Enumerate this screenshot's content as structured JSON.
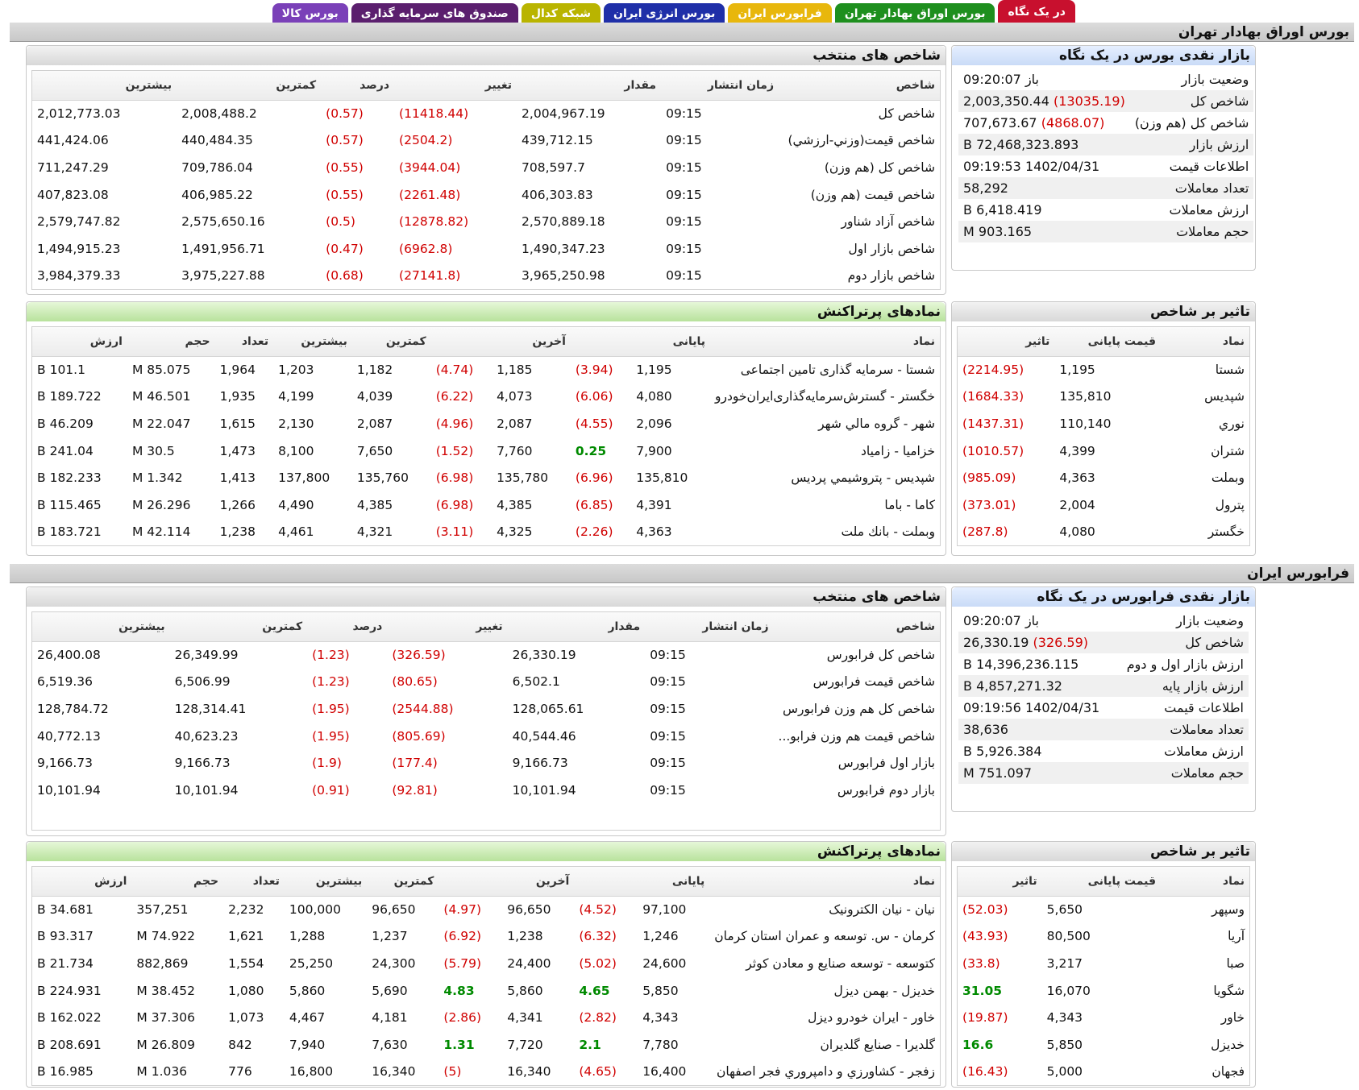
{
  "tabs": [
    {
      "label": "در یک نگاه",
      "bg": "#c8102e",
      "fg": "#ffffff",
      "active": true
    },
    {
      "label": "بورس اوراق بهادار تهران",
      "bg": "#1e8f1e",
      "fg": "#ffffff"
    },
    {
      "label": "فرابورس ایران",
      "bg": "#e8b70c",
      "fg": "#ffffff"
    },
    {
      "label": "بورس انرژی ایران",
      "bg": "#1f2fa8",
      "fg": "#ffffff"
    },
    {
      "label": "شبکه کدال",
      "bg": "#b9b400",
      "fg": "#ffffff"
    },
    {
      "label": "صندوق های سرمایه گذاری",
      "bg": "#5b1f6e",
      "fg": "#ffffff"
    },
    {
      "label": "بورس کالا",
      "bg": "#7a40b8",
      "fg": "#ffffff"
    }
  ],
  "tse": {
    "section_title": "بورس اوراق بهادار تهران",
    "summary": {
      "title": "بازار نقدی بورس در یک نگاه",
      "rows": [
        {
          "label": "وضعیت بازار",
          "value": "باز 09:20:07",
          "change": ""
        },
        {
          "label": "شاخص کل",
          "value": "2,003,350.44",
          "change": "(13035.19)"
        },
        {
          "label": "شاخص کل (هم وزن)",
          "value": "707,673.67",
          "change": "(4868.07)"
        },
        {
          "label": "ارزش بازار",
          "value": "72,468,323.893 B",
          "change": ""
        },
        {
          "label": "اطلاعات قیمت",
          "value": "1402/04/31 09:19:53",
          "change": ""
        },
        {
          "label": "تعداد معاملات",
          "value": "58,292",
          "change": ""
        },
        {
          "label": "ارزش معاملات",
          "value": "6,418.419 B",
          "change": ""
        },
        {
          "label": "حجم معاملات",
          "value": "903.165 M",
          "change": ""
        }
      ]
    },
    "indices": {
      "title": "شاخص های منتخب",
      "headers": [
        "شاخص",
        "زمان انتشار",
        "مقدار",
        "تغییر",
        "درصد",
        "کمترین",
        "بیشترین"
      ],
      "rows": [
        [
          "شاخص کل",
          "09:15",
          "2,004,967.19",
          "(11418.44)",
          "(0.57)",
          "2,008,488.2",
          "2,012,773.03"
        ],
        [
          "شاخص قیمت(وزني-ارزشي)",
          "09:15",
          "439,712.15",
          "(2504.2)",
          "(0.57)",
          "440,484.35",
          "441,424.06"
        ],
        [
          "شاخص کل (هم وزن)",
          "09:15",
          "708,597.7",
          "(3944.04)",
          "(0.55)",
          "709,786.04",
          "711,247.29"
        ],
        [
          "شاخص قیمت (هم وزن)",
          "09:15",
          "406,303.83",
          "(2261.48)",
          "(0.55)",
          "406,985.22",
          "407,823.08"
        ],
        [
          "شاخص آزاد شناور",
          "09:15",
          "2,570,889.18",
          "(12878.82)",
          "(0.5)",
          "2,575,650.16",
          "2,579,747.82"
        ],
        [
          "شاخص بازار اول",
          "09:15",
          "1,490,347.23",
          "(6962.8)",
          "(0.47)",
          "1,491,956.71",
          "1,494,915.23"
        ],
        [
          "شاخص بازار دوم",
          "09:15",
          "3,965,250.98",
          "(27141.8)",
          "(0.68)",
          "3,975,227.88",
          "3,984,379.33"
        ]
      ]
    },
    "impact": {
      "title": "تاثیر بر شاخص",
      "headers": [
        "نماد",
        "قیمت پایانی",
        "تاثیر"
      ],
      "rows": [
        [
          "شستا",
          "1,195",
          "(2214.95)"
        ],
        [
          "شپدیس",
          "135,810",
          "(1684.33)"
        ],
        [
          "نوري",
          "110,140",
          "(1437.31)"
        ],
        [
          "شتران",
          "4,399",
          "(1010.57)"
        ],
        [
          "وبملت",
          "4,363",
          "(985.09)"
        ],
        [
          "پترول",
          "2,004",
          "(373.01)"
        ],
        [
          "خگستر",
          "4,080",
          "(287.8)"
        ]
      ]
    },
    "active_symbols": {
      "title": "نمادهای پرتراکنش",
      "headers": [
        "نماد",
        "پایانی",
        "",
        "آخرین",
        "",
        "کمترین",
        "بیشترین",
        "تعداد",
        "حجم",
        "ارزش"
      ],
      "rows": [
        [
          "شستا - سرمایه گذاری تامین اجتماعی",
          "1,195",
          "(3.94)",
          "1,185",
          "(4.74)",
          "1,182",
          "1,203",
          "1,964",
          "85.075 M",
          "101.1 B"
        ],
        [
          "خگستر - گسترش‌سرمایه‌گذاری‌ایران‌خودرو",
          "4,080",
          "(6.06)",
          "4,073",
          "(6.22)",
          "4,039",
          "4,199",
          "1,935",
          "46.501 M",
          "189.722 B"
        ],
        [
          "شهر - گروه مالي شهر",
          "2,096",
          "(4.55)",
          "2,087",
          "(4.96)",
          "2,087",
          "2,130",
          "1,615",
          "22.047 M",
          "46.209 B"
        ],
        [
          "خزامیا - زامیاد",
          "7,900",
          "0.25",
          "7,760",
          "(1.52)",
          "7,650",
          "8,100",
          "1,473",
          "30.5 M",
          "241.04 B"
        ],
        [
          "شپدیس - پتروشیمي پردیس",
          "135,810",
          "(6.96)",
          "135,780",
          "(6.98)",
          "135,760",
          "137,800",
          "1,413",
          "1.342 M",
          "182.233 B"
        ],
        [
          "کاما - باما",
          "4,391",
          "(6.85)",
          "4,385",
          "(6.98)",
          "4,385",
          "4,490",
          "1,266",
          "26.296 M",
          "115.465 B"
        ],
        [
          "وبملت - بانك ملت",
          "4,363",
          "(2.26)",
          "4,325",
          "(3.11)",
          "4,321",
          "4,461",
          "1,238",
          "42.114 M",
          "183.721 B"
        ]
      ]
    }
  },
  "ifb": {
    "section_title": "فرابورس ایران",
    "summary": {
      "title": "بازار نقدی فرابورس در یک نگاه",
      "rows": [
        {
          "label": "وضعیت بازار",
          "value": "باز 09:20:07",
          "change": ""
        },
        {
          "label": "شاخص کل",
          "value": "26,330.19",
          "change": "(326.59)"
        },
        {
          "label": "ارزش بازار اول و دوم",
          "value": "14,396,236.115 B",
          "change": ""
        },
        {
          "label": "ارزش بازار پایه",
          "value": "4,857,271.32 B",
          "change": ""
        },
        {
          "label": "اطلاعات قیمت",
          "value": "1402/04/31 09:19:56",
          "change": ""
        },
        {
          "label": "تعداد معاملات",
          "value": "38,636",
          "change": ""
        },
        {
          "label": "ارزش معاملات",
          "value": "5,926.384 B",
          "change": ""
        },
        {
          "label": "حجم معاملات",
          "value": "751.097 M",
          "change": ""
        }
      ]
    },
    "indices": {
      "title": "شاخص های منتخب",
      "headers": [
        "شاخص",
        "زمان انتشار",
        "مقدار",
        "تغییر",
        "درصد",
        "کمترین",
        "بیشترین"
      ],
      "rows": [
        [
          "شاخص کل فرابورس",
          "09:15",
          "26,330.19",
          "(326.59)",
          "(1.23)",
          "26,349.99",
          "26,400.08"
        ],
        [
          "شاخص قیمت فرابورس",
          "09:15",
          "6,502.1",
          "(80.65)",
          "(1.23)",
          "6,506.99",
          "6,519.36"
        ],
        [
          "شاخص کل هم وزن فرابورس",
          "09:15",
          "128,065.61",
          "(2544.88)",
          "(1.95)",
          "128,314.41",
          "128,784.72"
        ],
        [
          "شاخص قیمت هم وزن فرابو...",
          "09:15",
          "40,544.46",
          "(805.69)",
          "(1.95)",
          "40,623.23",
          "40,772.13"
        ],
        [
          "بازار اول فرابورس",
          "09:15",
          "9,166.73",
          "(177.4)",
          "(1.9)",
          "9,166.73",
          "9,166.73"
        ],
        [
          "بازار دوم فرابورس",
          "09:15",
          "10,101.94",
          "(92.81)",
          "(0.91)",
          "10,101.94",
          "10,101.94"
        ]
      ]
    },
    "impact": {
      "title": "تاثیر بر شاخص",
      "headers": [
        "نماد",
        "قیمت پایانی",
        "تاثیر"
      ],
      "rows": [
        [
          "وسپهر",
          "5,650",
          "(52.03)"
        ],
        [
          "آریا",
          "80,500",
          "(43.93)"
        ],
        [
          "صبا",
          "3,217",
          "(33.8)"
        ],
        [
          "شگویا",
          "16,070",
          "31.05"
        ],
        [
          "خاور",
          "4,343",
          "(19.87)"
        ],
        [
          "خدیزل",
          "5,850",
          "16.6"
        ],
        [
          "فجهان",
          "5,000",
          "(16.43)"
        ]
      ]
    },
    "active_symbols": {
      "title": "نمادهای پرتراکنش",
      "headers": [
        "نماد",
        "پایانی",
        "",
        "آخرین",
        "",
        "کمترین",
        "بیشترین",
        "تعداد",
        "حجم",
        "ارزش"
      ],
      "rows": [
        [
          "نیان - نیان الکترونیک",
          "97,100",
          "(4.52)",
          "96,650",
          "(4.97)",
          "96,650",
          "100,000",
          "2,232",
          "357,251",
          "34.681 B"
        ],
        [
          "کرمان - س. توسعه و عمران استان کرمان",
          "1,246",
          "(6.32)",
          "1,238",
          "(6.92)",
          "1,237",
          "1,288",
          "1,621",
          "74.922 M",
          "93.317 B"
        ],
        [
          "کتوسعه - توسعه صنایع و معادن کوثر",
          "24,600",
          "(5.02)",
          "24,400",
          "(5.79)",
          "24,300",
          "25,250",
          "1,554",
          "882,869",
          "21.734 B"
        ],
        [
          "خدیزل - بهمن دیزل",
          "5,850",
          "4.65",
          "5,860",
          "4.83",
          "5,690",
          "5,860",
          "1,080",
          "38.452 M",
          "224.931 B"
        ],
        [
          "خاور - ایران خودرو دیزل",
          "4,343",
          "(2.82)",
          "4,341",
          "(2.86)",
          "4,181",
          "4,467",
          "1,073",
          "37.306 M",
          "162.022 B"
        ],
        [
          "گلدیرا - صنایع گلدیران",
          "7,780",
          "2.1",
          "7,720",
          "1.31",
          "7,630",
          "7,940",
          "842",
          "26.809 M",
          "208.691 B"
        ],
        [
          "زفجر - کشاورزي و دامپروري فجر اصفهان",
          "16,400",
          "(4.65)",
          "16,340",
          "(5)",
          "16,340",
          "16,800",
          "776",
          "1.036 M",
          "16.985 B"
        ]
      ]
    }
  }
}
